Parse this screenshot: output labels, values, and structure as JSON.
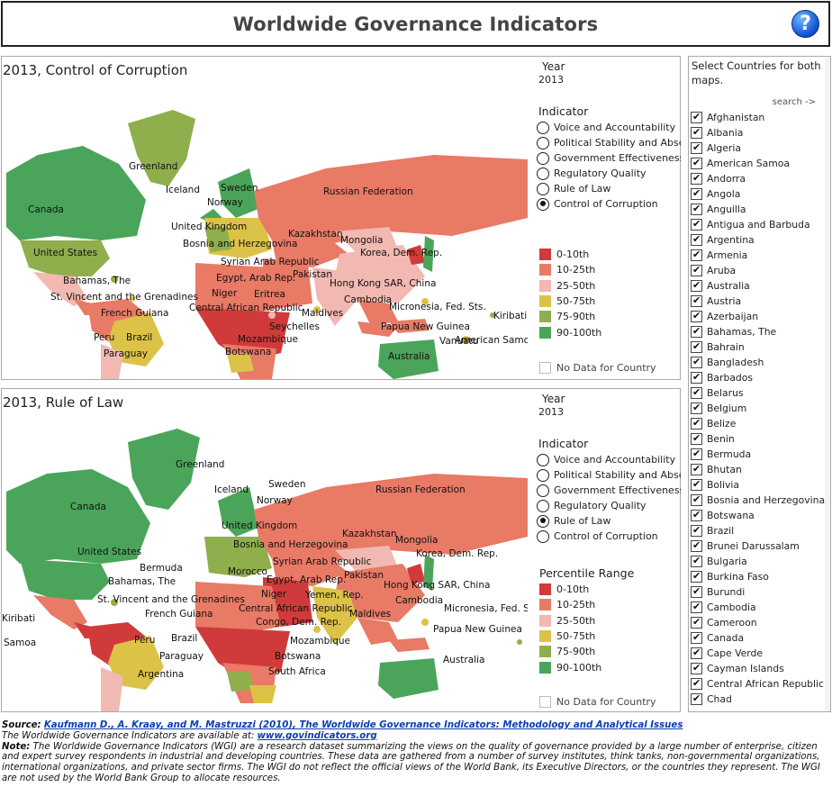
{
  "header": {
    "title": "Worldwide Governance Indicators",
    "help_icon": "help-icon",
    "help_label": "?"
  },
  "controls": {
    "year_label": "Year",
    "year_value": "2013",
    "indicator_label": "Indicator",
    "indicators": [
      "Voice and Accountability",
      "Political Stability and Absen..",
      "Government Effectiveness",
      "Regulatory Quality",
      "Rule of Law",
      "Control of Corruption"
    ],
    "legend_title": "Percentile Range",
    "legend": [
      {
        "label": "0-10th",
        "color": "#d13a3a"
      },
      {
        "label": "10-25th",
        "color": "#e87a66"
      },
      {
        "label": "25-50th",
        "color": "#f2b8b2"
      },
      {
        "label": "50-75th",
        "color": "#dcc247"
      },
      {
        "label": "75-90th",
        "color": "#8faf4c"
      },
      {
        "label": "90-100th",
        "color": "#4aa55a"
      }
    ],
    "no_data_label": "No Data for Country"
  },
  "map1": {
    "title": "2013, Control of Corruption",
    "selected_indicator": "Control of Corruption",
    "labels": [
      "Greenland",
      "Iceland",
      "Sweden",
      "Norway",
      "Canada",
      "United Kingdom",
      "Russian Federation",
      "Kazakhstan",
      "Mongolia",
      "Bosnia and Herzegovina",
      "United States",
      "Syrian Arab Republic",
      "Korea, Dem. Rep.",
      "Pakistan",
      "Bahamas, The",
      "Egypt, Arab Rep.",
      "Hong Kong SAR, China",
      "St. Vincent and the Grenadines",
      "Niger",
      "Eritrea",
      "Cambodia",
      "Central African Republic",
      "Micronesia, Fed. Sts.",
      "French Guiana",
      "Maldives",
      "Kiribati",
      "Seychelles",
      "Papua New Guinea",
      "Peru",
      "Brazil",
      "Mozambique",
      "Vanuatu",
      "American Samoa",
      "Paraguay",
      "Botswana",
      "Australia"
    ]
  },
  "map2": {
    "title": "2013, Rule of Law",
    "selected_indicator": "Rule of Law",
    "labels": [
      "Greenland",
      "Iceland",
      "Sweden",
      "Norway",
      "Russian Federation",
      "Canada",
      "United Kingdom",
      "Kazakhstan",
      "Mongolia",
      "Bosnia and Herzegovina",
      "United States",
      "Korea, Dem. Rep.",
      "Syrian Arab Republic",
      "Bermuda",
      "Morocco",
      "Egypt, Arab Rep.",
      "Pakistan",
      "Bahamas, The",
      "Hong Kong SAR, China",
      "Yemen, Rep.",
      "Niger",
      "St. Vincent and the Grenadines",
      "Cambodia",
      "Central African Republic",
      "Micronesia, Fed. Sts.",
      "French Guiana",
      "Congo, Dem. Rep.",
      "Maldives",
      "Kiribati",
      "Papua New Guinea",
      "Samoa",
      "Peru",
      "Brazil",
      "Mozambique",
      "Paraguay",
      "Botswana",
      "Australia",
      "Argentina",
      "South Africa"
    ]
  },
  "country_panel": {
    "heading": "Select Countries for both maps.",
    "search_label": "search ->",
    "countries": [
      "Afghanistan",
      "Albania",
      "Algeria",
      "American Samoa",
      "Andorra",
      "Angola",
      "Anguilla",
      "Antigua and Barbuda",
      "Argentina",
      "Armenia",
      "Aruba",
      "Australia",
      "Austria",
      "Azerbaijan",
      "Bahamas, The",
      "Bahrain",
      "Bangladesh",
      "Barbados",
      "Belarus",
      "Belgium",
      "Belize",
      "Benin",
      "Bermuda",
      "Bhutan",
      "Bolivia",
      "Bosnia and Herzegovina",
      "Botswana",
      "Brazil",
      "Brunei Darussalam",
      "Bulgaria",
      "Burkina Faso",
      "Burundi",
      "Cambodia",
      "Cameroon",
      "Canada",
      "Cape Verde",
      "Cayman Islands",
      "Central African Republic",
      "Chad"
    ]
  },
  "footer": {
    "source_label": "Source:",
    "source_link": "Kaufmann D., A. Kraay, and M. Mastruzzi (2010), The Worldwide Governance Indicators: Methodology and Analytical Issues",
    "available_text": "The Worldwide Governance Indicators are available at:",
    "available_link": "www.govindicators.org",
    "note_label": "Note:",
    "note_text": "The Worldwide Governance Indicators (WGI) are a research dataset summarizing the views on the quality of governance provided by a large number of enterprise, citizen and expert survey respondents in industrial and developing countries. These data are gathered from a number of survey institutes, think tanks, non-governmental organizations, international organizations, and private sector firms. The WGI do not reflect the official views of the World Bank, its Executive Directors, or the countries they represent. The WGI are not used by the World Bank Group to allocate resources."
  }
}
